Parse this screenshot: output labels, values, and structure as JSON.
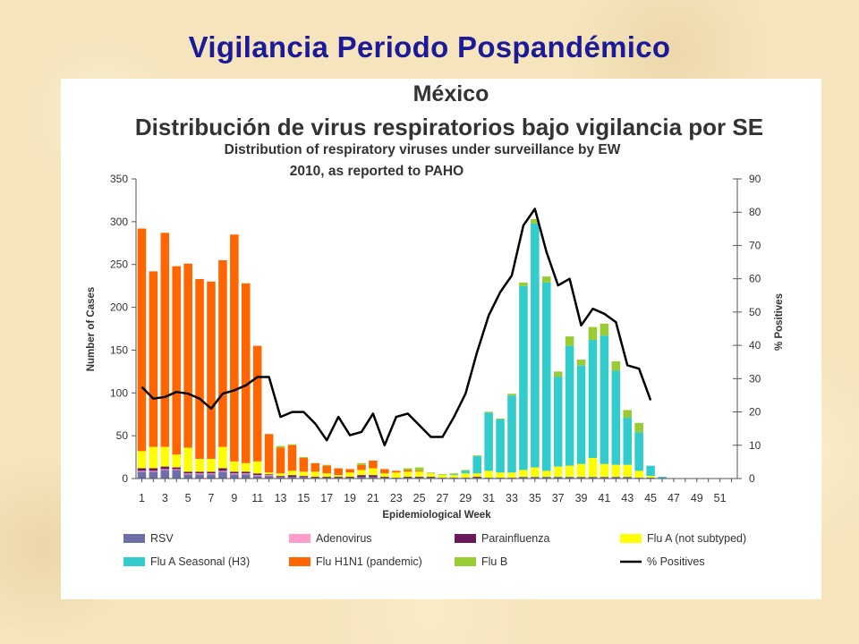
{
  "slide": {
    "title": "Vigilancia Periodo Pospandémico"
  },
  "colors": {
    "RSV": "#6e6ea8",
    "Adenovirus": "#ff9ccc",
    "Parainfluenza": "#6a1a5c",
    "FluA": "#ffff00",
    "H3": "#33cccc",
    "H1N1": "#ff6600",
    "FluB": "#99cc33",
    "Positives": "#000000"
  },
  "chart_data": {
    "type": "bar",
    "title": "México",
    "subtitle": "Distribución de virus respiratorios bajo vigilancia por SE",
    "subtitle_en_line1": "Distribution of respiratory viruses under surveillance by EW",
    "subtitle_en_line2": "2010, as reported to PAHO",
    "xlabel": "Epidemiological Week",
    "ylabel": "Number of Cases",
    "y2label": "% Positives",
    "ylim": [
      0,
      350
    ],
    "y2lim": [
      0,
      90
    ],
    "yticks": [
      "0",
      "50",
      "100",
      "150",
      "200",
      "250",
      "300",
      "350"
    ],
    "y2ticks": [
      "0",
      "10",
      "20",
      "30",
      "40",
      "50",
      "60",
      "70",
      "80",
      "90"
    ],
    "xticks": [
      "1",
      "3",
      "5",
      "7",
      "9",
      "11",
      "13",
      "15",
      "17",
      "19",
      "21",
      "23",
      "25",
      "27",
      "29",
      "31",
      "33",
      "35",
      "37",
      "39",
      "41",
      "43",
      "45",
      "47",
      "49",
      "51"
    ],
    "weeks": [
      1,
      2,
      3,
      4,
      5,
      6,
      7,
      8,
      9,
      10,
      11,
      12,
      13,
      14,
      15,
      16,
      17,
      18,
      19,
      20,
      21,
      22,
      23,
      24,
      25,
      26,
      27,
      28,
      29,
      30,
      31,
      32,
      33,
      34,
      35,
      36,
      37,
      38,
      39,
      40,
      41,
      42,
      43,
      44,
      45,
      46,
      47,
      48,
      49,
      50,
      51,
      52
    ],
    "stack_order": [
      "RSV",
      "Adenovirus",
      "Parainfluenza",
      "Flu A (not subtyped)",
      "Flu A Seasonal (H3)",
      "Flu H1N1 (pandemic)",
      "Flu B"
    ],
    "series": [
      {
        "name": "RSV",
        "color_key": "RSV",
        "values": [
          8,
          8,
          10,
          10,
          5,
          5,
          5,
          8,
          5,
          5,
          3,
          3,
          2,
          2,
          2,
          1,
          1,
          1,
          1,
          2,
          2,
          1,
          1,
          1,
          1,
          1,
          1,
          1,
          1,
          1,
          1,
          1,
          1,
          2,
          2,
          2,
          2,
          2,
          2,
          2,
          2,
          2,
          2,
          1,
          1,
          0,
          0,
          0,
          0,
          0,
          0,
          0
        ]
      },
      {
        "name": "Adenovirus",
        "color_key": "Adenovirus",
        "values": [
          1,
          1,
          1,
          1,
          1,
          1,
          1,
          1,
          1,
          1,
          1,
          1,
          0,
          0,
          0,
          0,
          0,
          0,
          0,
          0,
          0,
          0,
          0,
          0,
          0,
          0,
          0,
          0,
          0,
          0,
          0,
          0,
          0,
          0,
          0,
          0,
          0,
          0,
          0,
          0,
          0,
          0,
          0,
          0,
          0,
          0,
          0,
          0,
          0,
          0,
          0,
          0
        ]
      },
      {
        "name": "Parainfluenza",
        "color_key": "Parainfluenza",
        "values": [
          3,
          3,
          3,
          2,
          2,
          2,
          2,
          3,
          2,
          2,
          2,
          1,
          1,
          2,
          1,
          1,
          1,
          1,
          1,
          2,
          2,
          1,
          0,
          1,
          1,
          1,
          0,
          0,
          0,
          1,
          0,
          0,
          0,
          0,
          0,
          0,
          0,
          0,
          0,
          0,
          0,
          0,
          0,
          0,
          0,
          0,
          0,
          0,
          0,
          0,
          0,
          0
        ]
      },
      {
        "name": "Flu A (not subtyped)",
        "color_key": "FluA",
        "values": [
          20,
          25,
          23,
          15,
          28,
          15,
          15,
          25,
          12,
          10,
          14,
          2,
          3,
          5,
          5,
          6,
          4,
          2,
          5,
          6,
          8,
          4,
          6,
          6,
          6,
          4,
          3,
          3,
          5,
          4,
          8,
          6,
          6,
          8,
          11,
          7,
          12,
          13,
          15,
          22,
          15,
          14,
          14,
          8,
          2,
          0,
          0,
          0,
          0,
          0,
          0,
          0
        ]
      },
      {
        "name": "Flu A Seasonal (H3)",
        "color_key": "H3",
        "values": [
          0,
          0,
          0,
          0,
          0,
          0,
          0,
          0,
          0,
          0,
          0,
          0,
          0,
          0,
          0,
          0,
          0,
          0,
          0,
          0,
          0,
          0,
          0,
          0,
          0,
          0,
          0,
          1,
          3,
          20,
          68,
          62,
          90,
          215,
          285,
          220,
          105,
          140,
          115,
          138,
          150,
          110,
          55,
          45,
          12,
          2,
          0,
          0,
          0,
          0,
          0,
          0
        ]
      },
      {
        "name": "Flu H1N1 (pandemic)",
        "color_key": "H1N1",
        "values": [
          260,
          205,
          250,
          220,
          215,
          210,
          207,
          218,
          265,
          210,
          135,
          45,
          30,
          30,
          16,
          10,
          9,
          8,
          4,
          6,
          9,
          5,
          2,
          2,
          1,
          0,
          0,
          0,
          0,
          0,
          0,
          0,
          0,
          0,
          0,
          0,
          0,
          0,
          0,
          0,
          0,
          0,
          0,
          0,
          0,
          0,
          0,
          0,
          0,
          0,
          0,
          0
        ]
      },
      {
        "name": "Flu B",
        "color_key": "FluB",
        "values": [
          0,
          0,
          0,
          0,
          0,
          0,
          0,
          0,
          0,
          0,
          0,
          0,
          2,
          1,
          1,
          0,
          1,
          0,
          0,
          2,
          0,
          0,
          0,
          2,
          4,
          1,
          1,
          1,
          1,
          1,
          1,
          1,
          2,
          4,
          5,
          7,
          6,
          11,
          7,
          15,
          14,
          11,
          9,
          11,
          0,
          0,
          0,
          0,
          0,
          0,
          0,
          0
        ]
      }
    ],
    "line_series": {
      "name": "% Positives",
      "color_key": "Positives",
      "axis": "right",
      "values": [
        27.5,
        24,
        24.5,
        26,
        25.5,
        24,
        21,
        25.5,
        26.5,
        28,
        30.5,
        30.5,
        18.5,
        20,
        20,
        16.5,
        11.5,
        18.5,
        13,
        14,
        19.5,
        10,
        18.5,
        19.5,
        16,
        12.5,
        12.5,
        18.5,
        25.5,
        38,
        49,
        56,
        61,
        76,
        81,
        68,
        58,
        60,
        46,
        51,
        49.5,
        47,
        34,
        33,
        23.5
      ]
    },
    "legend": [
      {
        "label": "RSV",
        "color_key": "RSV",
        "kind": "box"
      },
      {
        "label": "Adenovirus",
        "color_key": "Adenovirus",
        "kind": "box"
      },
      {
        "label": "Parainfluenza",
        "color_key": "Parainfluenza",
        "kind": "box"
      },
      {
        "label": "Flu A (not subtyped)",
        "color_key": "FluA",
        "kind": "box"
      },
      {
        "label": "Flu A Seasonal (H3)",
        "color_key": "H3",
        "kind": "box"
      },
      {
        "label": "Flu H1N1 (pandemic)",
        "color_key": "H1N1",
        "kind": "box"
      },
      {
        "label": "Flu B",
        "color_key": "FluB",
        "kind": "box"
      },
      {
        "label": "% Positives",
        "color_key": "Positives",
        "kind": "line"
      }
    ],
    "legend_position": "bottom",
    "grid": false
  }
}
